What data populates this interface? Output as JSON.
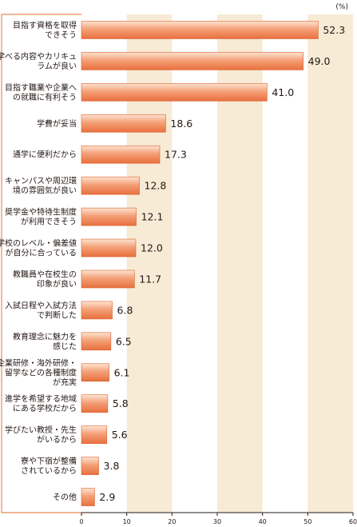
{
  "chart_data": {
    "type": "bar",
    "orientation": "horizontal",
    "unit": "(%)",
    "xlim": [
      0,
      60
    ],
    "xticks": [
      0,
      10,
      20,
      30,
      40,
      50,
      60
    ],
    "grid": "alternating shaded bands (10-20, 30-40, 50-60)",
    "categories": [
      [
        "目指す資格を取得",
        "できそう"
      ],
      [
        "学べる内容やカリキュ",
        "ラムが良い"
      ],
      [
        "目指す職業や企業へ",
        "の就職に有利そう"
      ],
      [
        "学費が妥当"
      ],
      [
        "通学に便利だから"
      ],
      [
        "キャンパスや周辺環",
        "境の雰囲気が良い"
      ],
      [
        "奨学金や特待生制度",
        "が利用できそう"
      ],
      [
        "学校のレベル・偏差値",
        "が自分に合っている"
      ],
      [
        "教職員や在校生の",
        "印象が良い"
      ],
      [
        "入試日程や入試方法",
        "で判断した"
      ],
      [
        "教育理念に魅力を",
        "感じた"
      ],
      [
        "企業研修・海外研修・",
        "留学などの各種制度",
        "が充実"
      ],
      [
        "進学を希望する地域",
        "にある学校だから"
      ],
      [
        "学びたい教授・先生",
        "がいるから"
      ],
      [
        "寮や下宿が整備",
        "されているから"
      ],
      [
        "その他"
      ]
    ],
    "values": [
      52.3,
      49.0,
      41.0,
      18.6,
      17.3,
      12.8,
      12.1,
      12.0,
      11.7,
      6.8,
      6.5,
      6.1,
      5.8,
      5.6,
      3.8,
      2.9
    ],
    "value_labels": [
      "52.3",
      "49.0",
      "41.0",
      "18.6",
      "17.3",
      "12.8",
      "12.1",
      "12.0",
      "11.7",
      "6.8",
      "6.5",
      "6.1",
      "5.8",
      "5.6",
      "3.8",
      "2.9"
    ],
    "colors": {
      "bar_light": "#fde4d2",
      "bar_mid": "#f4a078",
      "bar_dark": "#e8703e",
      "band": "#f7ebd6",
      "axis": "#231815",
      "frame": "#e68a52"
    }
  }
}
